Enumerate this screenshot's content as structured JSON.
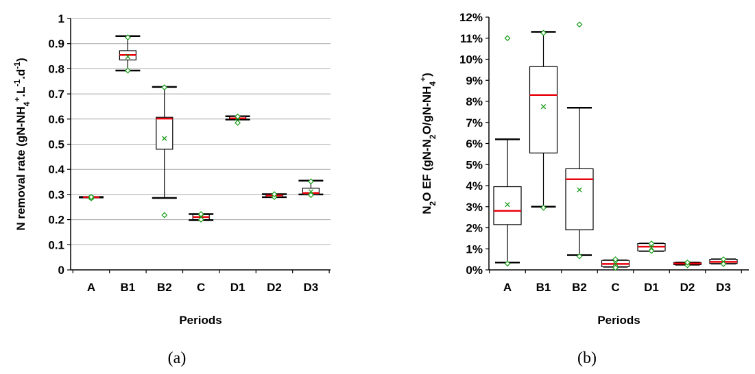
{
  "chart_data": [
    {
      "type": "box",
      "caption": "(a)",
      "xlabel": "Periods",
      "ylabel": {
        "base": "N removal rate (gN-NH",
        "sub1": "4",
        "sup1": "+",
        "mid": ".L",
        "sup2": "-1",
        "mid2": ".d",
        "sup3": "-1",
        "end": ")"
      },
      "ylim": [
        0,
        1
      ],
      "yticks": [
        0,
        0.1,
        0.2,
        0.3,
        0.4,
        0.5,
        0.6,
        0.7,
        0.8,
        0.9,
        1
      ],
      "ytick_labels": [
        "0",
        "0.1",
        "0.2",
        "0.3",
        "0.4",
        "0.5",
        "0.6",
        "0.7",
        "0.8",
        "0.9",
        "1"
      ],
      "grid": "horizontal",
      "categories": [
        "A",
        "B1",
        "B2",
        "C",
        "D1",
        "D2",
        "D3"
      ],
      "boxes": [
        {
          "min": 0.288,
          "q1": 0.288,
          "median": 0.289,
          "q3": 0.29,
          "max": 0.29,
          "mean": 0.288,
          "points": [
            0.285,
            0.29
          ]
        },
        {
          "min": 0.793,
          "q1": 0.835,
          "median": 0.855,
          "q3": 0.872,
          "max": 0.93,
          "mean": 0.848,
          "points": [
            0.793,
            0.925
          ]
        },
        {
          "min": 0.286,
          "q1": 0.48,
          "median": 0.602,
          "q3": 0.607,
          "max": 0.728,
          "mean": 0.523,
          "points": [
            0.218,
            0.726
          ]
        },
        {
          "min": 0.198,
          "q1": 0.2,
          "median": 0.21,
          "q3": 0.22,
          "max": 0.222,
          "mean": 0.21,
          "points": [
            0.2,
            0.222
          ]
        },
        {
          "min": 0.598,
          "q1": 0.598,
          "median": 0.603,
          "q3": 0.61,
          "max": 0.611,
          "mean": 0.604,
          "points": [
            0.585,
            0.61
          ]
        },
        {
          "min": 0.289,
          "q1": 0.29,
          "median": 0.296,
          "q3": 0.301,
          "max": 0.301,
          "mean": 0.295,
          "points": [
            0.29,
            0.301
          ]
        },
        {
          "min": 0.3,
          "q1": 0.3,
          "median": 0.306,
          "q3": 0.325,
          "max": 0.355,
          "mean": 0.311,
          "points": [
            0.298,
            0.352
          ]
        }
      ]
    },
    {
      "type": "box",
      "caption": "(b)",
      "xlabel": "Periods",
      "ylabel": {
        "base": "N",
        "sub1": "2",
        "mid": "O EF (gN-N",
        "sub2": "2",
        "mid2": "O/gN-NH",
        "sub3": "4",
        "sup3": "+",
        "end": ")"
      },
      "ylim": [
        0,
        12
      ],
      "yticks": [
        0,
        1,
        2,
        3,
        4,
        5,
        6,
        7,
        8,
        9,
        10,
        11,
        12
      ],
      "ytick_labels": [
        "0%",
        "1%",
        "2%",
        "3%",
        "4%",
        "5%",
        "6%",
        "7%",
        "8%",
        "9%",
        "10%",
        "11%",
        "12%"
      ],
      "grid": "none",
      "categories": [
        "A",
        "B1",
        "B2",
        "C",
        "D1",
        "D2",
        "D3"
      ],
      "boxes": [
        {
          "min": 0.35,
          "q1": 2.15,
          "median": 2.8,
          "q3": 3.95,
          "max": 6.2,
          "mean": 3.1,
          "points": [
            0.3,
            11.0
          ]
        },
        {
          "min": 3.0,
          "q1": 5.55,
          "median": 8.3,
          "q3": 9.65,
          "max": 11.3,
          "mean": 7.75,
          "points": [
            2.95,
            11.25
          ]
        },
        {
          "min": 0.7,
          "q1": 1.9,
          "median": 4.3,
          "q3": 4.8,
          "max": 7.7,
          "mean": 3.8,
          "points": [
            0.65,
            11.65
          ]
        },
        {
          "min": 0.15,
          "q1": 0.15,
          "median": 0.28,
          "q3": 0.45,
          "max": 0.45,
          "mean": 0.3,
          "points": [
            0.1,
            0.5
          ]
        },
        {
          "min": 0.9,
          "q1": 0.9,
          "median": 1.1,
          "q3": 1.25,
          "max": 1.25,
          "mean": 1.05,
          "points": [
            0.9,
            1.25
          ]
        },
        {
          "min": 0.25,
          "q1": 0.25,
          "median": 0.3,
          "q3": 0.35,
          "max": 0.35,
          "mean": 0.3,
          "points": [
            0.22,
            0.35
          ]
        },
        {
          "min": 0.3,
          "q1": 0.3,
          "median": 0.38,
          "q3": 0.5,
          "max": 0.5,
          "mean": 0.4,
          "points": [
            0.28,
            0.5
          ]
        }
      ]
    }
  ],
  "colors": {
    "median": "#e8000b",
    "mean": "#179c17",
    "points": "#179c17",
    "box": "#000000",
    "grid": "#aaaaaa"
  }
}
